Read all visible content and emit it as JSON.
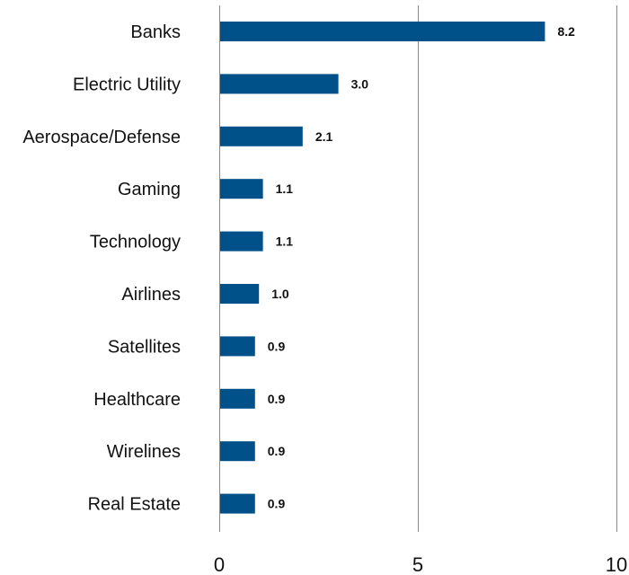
{
  "chart_data": {
    "type": "bar",
    "orientation": "horizontal",
    "categories": [
      "Banks",
      "Electric Utility",
      "Aerospace/Defense",
      "Gaming",
      "Technology",
      "Airlines",
      "Satellites",
      "Healthcare",
      "Wirelines",
      "Real Estate"
    ],
    "values": [
      8.2,
      3.0,
      2.1,
      1.1,
      1.1,
      1.0,
      0.9,
      0.9,
      0.9,
      0.9
    ],
    "data_labels": [
      "8.2",
      "3.0",
      "2.1",
      "1.1",
      "1.1",
      "1.0",
      "0.9",
      "0.9",
      "0.9",
      "0.9"
    ],
    "xlim": [
      0,
      10
    ],
    "xticks": [
      0,
      5,
      10
    ],
    "xtick_labels": [
      "0",
      "5",
      "10"
    ],
    "title": "",
    "xlabel": "",
    "ylabel": "",
    "grid": "vertical",
    "legend": "none",
    "bar_color": "#00508a"
  }
}
